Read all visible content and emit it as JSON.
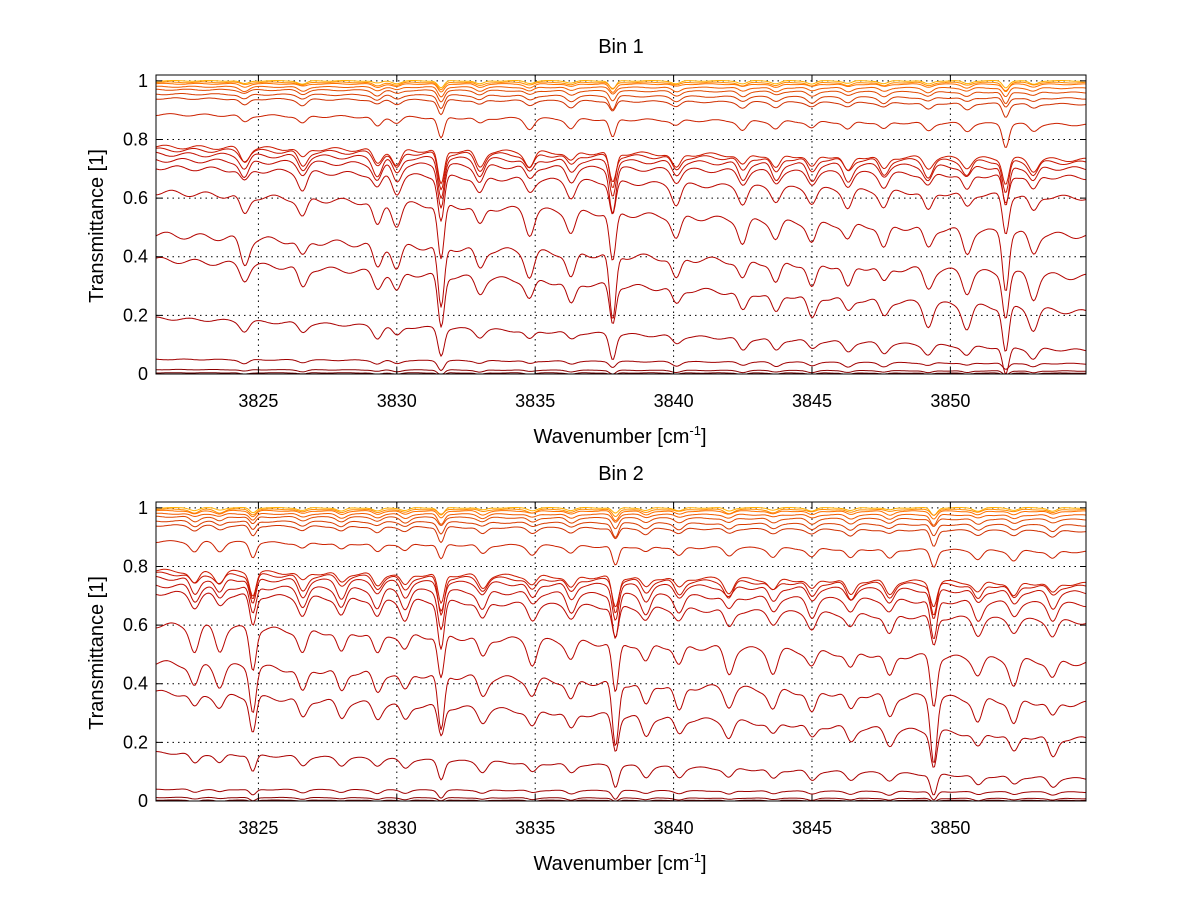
{
  "chart_data": [
    {
      "type": "line",
      "title": "Bin 1",
      "xlabel": "Wavenumber [cm",
      "xlabel_sup": "-1",
      "xlabel_close": "]",
      "ylabel": "Transmittance [1]",
      "xlim": [
        3821.3,
        3854.9
      ],
      "ylim": [
        0,
        1.02
      ],
      "xticks": [
        "3825",
        "3830",
        "3835",
        "3840",
        "3845",
        "3850"
      ],
      "yticks": [
        "0",
        "0.2",
        "0.4",
        "0.6",
        "0.8",
        "1"
      ],
      "grid": true,
      "strong_lines": [
        3831.6,
        3837.8,
        3852.0
      ],
      "weak_lines": [
        3824.5,
        3826.6,
        3829.3,
        3830.0,
        3833.0,
        3834.8,
        3836.3,
        3840.1,
        3842.5,
        3843.7,
        3845.0,
        3846.3,
        3847.6,
        3849.2,
        3850.6,
        3853.0
      ],
      "series": [
        {
          "values": [
            1.0,
            1.0
          ],
          "color": "#ffb000"
        },
        {
          "values": [
            0.995,
            0.994
          ],
          "color": "#ff8c00"
        },
        {
          "values": [
            0.99,
            0.988
          ],
          "color": "#ff7000"
        },
        {
          "values": [
            0.98,
            0.975
          ],
          "color": "#f05a00"
        },
        {
          "values": [
            0.97,
            0.96
          ],
          "color": "#e04800"
        },
        {
          "values": [
            0.955,
            0.94
          ],
          "color": "#d83c00"
        },
        {
          "values": [
            0.94,
            0.92
          ],
          "color": "#d03000"
        },
        {
          "values": [
            0.885,
            0.85
          ],
          "color": "#cc2200"
        },
        {
          "values": [
            0.775,
            0.73
          ],
          "color": "#cc1a00"
        },
        {
          "values": [
            0.765,
            0.72
          ],
          "color": "#c81500"
        },
        {
          "values": [
            0.75,
            0.7
          ],
          "color": "#c41000"
        },
        {
          "values": [
            0.73,
            0.67
          ],
          "color": "#c00c00"
        },
        {
          "values": [
            0.705,
            0.6
          ],
          "color": "#bc0800"
        },
        {
          "values": [
            0.62,
            0.47
          ],
          "color": "#b80600"
        },
        {
          "values": [
            0.475,
            0.33
          ],
          "color": "#b40400"
        },
        {
          "values": [
            0.39,
            0.21
          ],
          "color": "#b00200"
        },
        {
          "values": [
            0.19,
            0.08
          ],
          "color": "#aa0000"
        },
        {
          "values": [
            0.05,
            0.035
          ],
          "color": "#a00000"
        },
        {
          "values": [
            0.015,
            0.01
          ],
          "color": "#8c0000"
        },
        {
          "values": [
            0.004,
            0.003
          ],
          "color": "#6e0000"
        }
      ]
    },
    {
      "type": "line",
      "title": "Bin 2",
      "xlabel": "Wavenumber [cm",
      "xlabel_sup": "-1",
      "xlabel_close": "]",
      "ylabel": "Transmittance [1]",
      "xlim": [
        3821.3,
        3854.9
      ],
      "ylim": [
        0,
        1.02
      ],
      "xticks": [
        "3825",
        "3830",
        "3835",
        "3840",
        "3845",
        "3850"
      ],
      "yticks": [
        "0",
        "0.2",
        "0.4",
        "0.6",
        "0.8",
        "1"
      ],
      "grid": true,
      "strong_lines": [
        3824.8,
        3831.6,
        3837.9,
        3849.4
      ],
      "weak_lines": [
        3822.7,
        3823.6,
        3826.6,
        3828.0,
        3829.3,
        3830.3,
        3833.1,
        3834.9,
        3836.3,
        3839.0,
        3840.2,
        3842.0,
        3843.6,
        3845.0,
        3846.4,
        3847.8,
        3851.0,
        3852.3,
        3853.7
      ],
      "series": [
        {
          "values": [
            1.0,
            1.0
          ],
          "color": "#ffb000"
        },
        {
          "values": [
            0.995,
            0.994
          ],
          "color": "#ff8c00"
        },
        {
          "values": [
            0.99,
            0.988
          ],
          "color": "#ff7000"
        },
        {
          "values": [
            0.98,
            0.975
          ],
          "color": "#f05a00"
        },
        {
          "values": [
            0.97,
            0.96
          ],
          "color": "#e04800"
        },
        {
          "values": [
            0.955,
            0.94
          ],
          "color": "#d83c00"
        },
        {
          "values": [
            0.94,
            0.92
          ],
          "color": "#d03000"
        },
        {
          "values": [
            0.885,
            0.85
          ],
          "color": "#cc2200"
        },
        {
          "values": [
            0.785,
            0.74
          ],
          "color": "#cc1a00"
        },
        {
          "values": [
            0.775,
            0.73
          ],
          "color": "#c81500"
        },
        {
          "values": [
            0.76,
            0.71
          ],
          "color": "#c41000"
        },
        {
          "values": [
            0.735,
            0.67
          ],
          "color": "#c00c00"
        },
        {
          "values": [
            0.71,
            0.61
          ],
          "color": "#bc0800"
        },
        {
          "values": [
            0.6,
            0.47
          ],
          "color": "#b80600"
        },
        {
          "values": [
            0.47,
            0.33
          ],
          "color": "#b40400"
        },
        {
          "values": [
            0.37,
            0.21
          ],
          "color": "#b00200"
        },
        {
          "values": [
            0.165,
            0.075
          ],
          "color": "#aa0000"
        },
        {
          "values": [
            0.04,
            0.03
          ],
          "color": "#a00000"
        },
        {
          "values": [
            0.012,
            0.008
          ],
          "color": "#8c0000"
        },
        {
          "values": [
            0.003,
            0.002
          ],
          "color": "#6e0000"
        }
      ]
    }
  ]
}
